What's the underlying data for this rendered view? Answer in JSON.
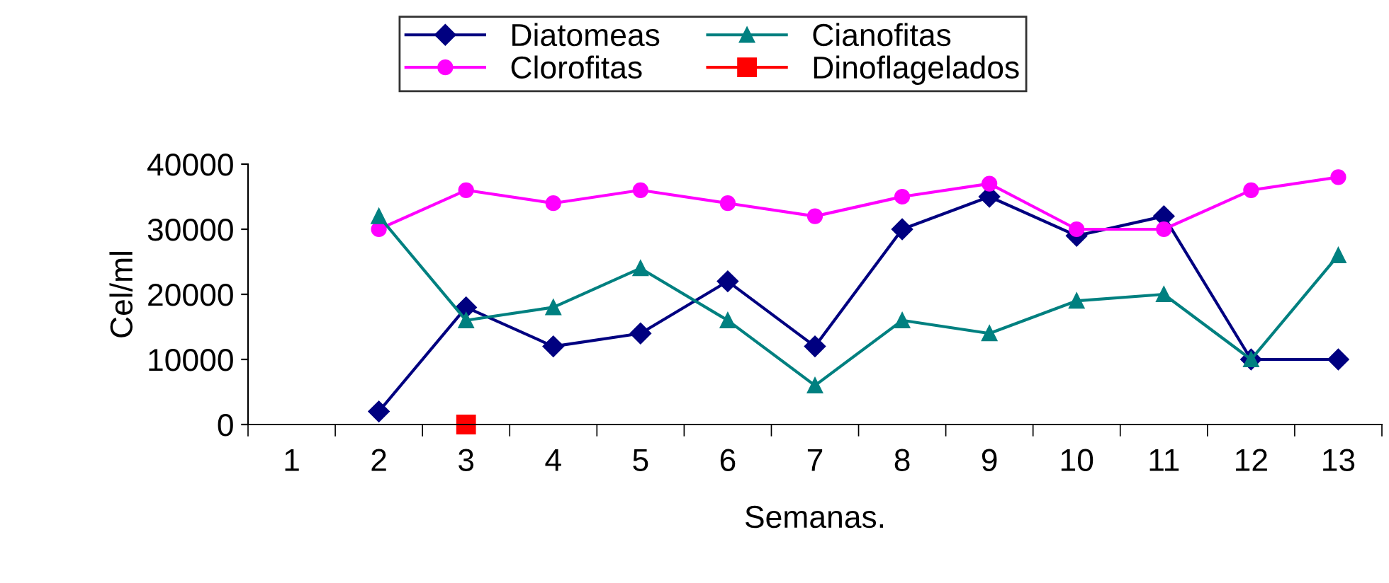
{
  "chart_data": {
    "type": "line",
    "xlabel": "Semanas.",
    "ylabel": "Cel/ml",
    "categories": [
      "1",
      "2",
      "3",
      "4",
      "5",
      "6",
      "7",
      "8",
      "9",
      "10",
      "11",
      "12",
      "13"
    ],
    "series": [
      {
        "name": "Diatomeas",
        "color": "#000080",
        "marker": "diamond",
        "values": [
          null,
          2000,
          18000,
          12000,
          14000,
          22000,
          12000,
          30000,
          35000,
          29000,
          32000,
          10000,
          10000
        ]
      },
      {
        "name": "Clorofitas",
        "color": "#ff00ff",
        "marker": "circle",
        "values": [
          null,
          30000,
          36000,
          34000,
          36000,
          34000,
          32000,
          35000,
          37000,
          30000,
          30000,
          36000,
          38000
        ]
      },
      {
        "name": "Cianofitas",
        "color": "#008080",
        "marker": "triangle",
        "values": [
          null,
          32000,
          16000,
          18000,
          24000,
          16000,
          6000,
          16000,
          14000,
          19000,
          20000,
          10000,
          26000
        ]
      },
      {
        "name": "Dinoflagelados",
        "color": "#ff0000",
        "marker": "square",
        "values": [
          null,
          null,
          0,
          null,
          null,
          null,
          null,
          null,
          null,
          null,
          null,
          null,
          null
        ]
      }
    ],
    "ylim": [
      0,
      40000
    ],
    "yticks": [
      0,
      10000,
      20000,
      30000,
      40000
    ],
    "grid": false,
    "legend": "top",
    "line_style": "solid"
  }
}
